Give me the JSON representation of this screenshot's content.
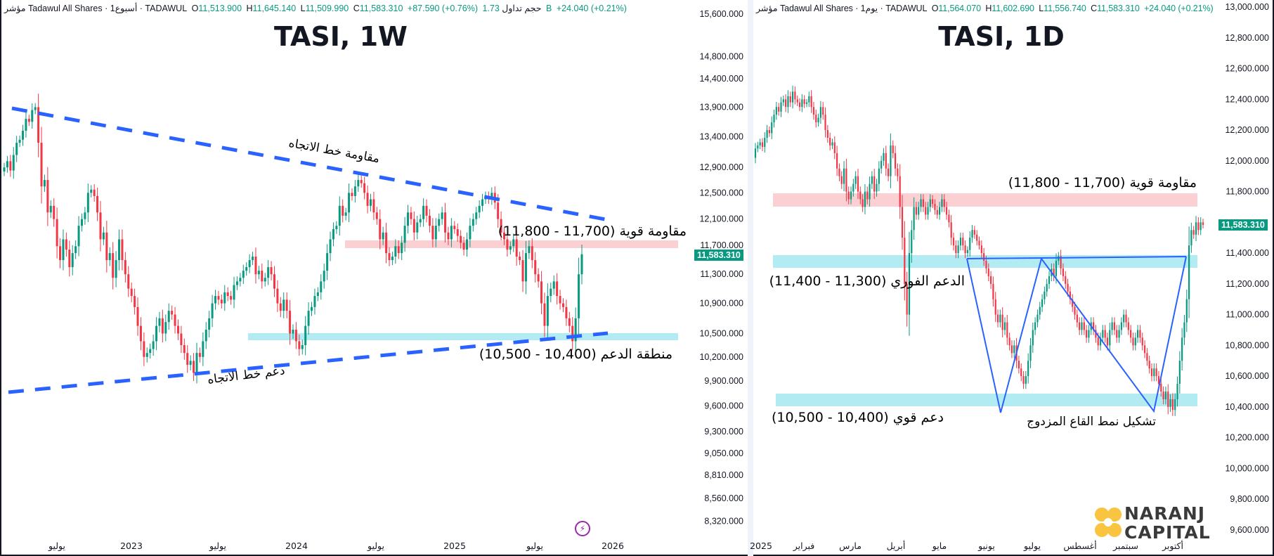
{
  "colors": {
    "up": "#089981",
    "down": "#f23645",
    "trendline": "#2962ff",
    "resistance_zone": "#fbd0d3",
    "support_zone": "#b2ebf2",
    "price_tag": "#089981"
  },
  "left": {
    "header": {
      "symbol": "مؤشر Tadawul All Shares · 1أسبوع · TADAWUL",
      "ohlc": [
        {
          "k": "O",
          "v": "11,513.900"
        },
        {
          "k": "H",
          "v": "11,645.140"
        },
        {
          "k": "L",
          "v": "11,509.990"
        },
        {
          "k": "C",
          "v": "11,583.310"
        }
      ],
      "change": "+87.590 (+0.76%)",
      "volume_label": "حجم تداول",
      "volume": "1.73 B",
      "extra_change": "+24.040 (+0.21%)"
    },
    "title": "TASI, 1W",
    "price_tag": "11,583.310",
    "annotations": {
      "trend_resistance": "مقاومة خط الاتجاه",
      "trend_support": "دعم خط الاتجاه",
      "strong_resistance": "مقاومة قوية (11,700 - 11,800)",
      "support_zone": "منطقة الدعم (10,400 - 10,500)"
    },
    "bolt_icon": "lightning-icon"
  },
  "right": {
    "header": {
      "symbol": "مؤشر Tadawul All Shares · 1يوم · TADAWUL",
      "ohlc": [
        {
          "k": "O",
          "v": "11,564.070"
        },
        {
          "k": "H",
          "v": "11,602.690"
        },
        {
          "k": "L",
          "v": "11,556.740"
        },
        {
          "k": "C",
          "v": "11,583.310"
        }
      ],
      "change": "+24.040 (+0.21%)"
    },
    "title": "TASI, 1D",
    "price_tag": "11,583.310",
    "annotations": {
      "strong_resistance": "مقاومة قوية (11,700 - 11,800)",
      "immediate_support": "الدعم الفوري (11,300 - 11,400)",
      "strong_support": "دعم قوي (10,400 - 10,500)",
      "double_bottom": "تشكيل نمط القاع المزدوج"
    }
  },
  "logo": {
    "line1": "NARANJ",
    "line2": "CAPITAL"
  },
  "chart_data": [
    {
      "type": "candlestick",
      "title": "TASI, 1W",
      "y_scale": "log",
      "ylim": [
        8320,
        15600
      ],
      "y_ticks": [
        "15,600.000",
        "14,800.000",
        "14,400.000",
        "13,900.000",
        "13,400.000",
        "12,900.000",
        "12,500.000",
        "12,100.000",
        "11,700.000",
        "11,300.000",
        "10,900.000",
        "10,500.000",
        "10,200.000",
        "9,900.000",
        "9,600.000",
        "9,300.000",
        "9,050.000",
        "8,810.000",
        "8,560.000",
        "8,320.000"
      ],
      "x_ticks": [
        "يوليو",
        "2023",
        "يوليو",
        "2024",
        "يوليو",
        "2025",
        "يوليو",
        "2026"
      ],
      "last_price": 11583.31,
      "zones": [
        {
          "name": "resistance",
          "from": 11700,
          "to": 11800
        },
        {
          "name": "support",
          "from": 10400,
          "to": 10500
        }
      ],
      "weekly_closes": [
        12900,
        13000,
        12850,
        13100,
        13300,
        13350,
        13500,
        13700,
        13650,
        13850,
        13900,
        13300,
        12600,
        12700,
        12200,
        12300,
        12100,
        11700,
        11500,
        11800,
        11650,
        11400,
        11600,
        11700,
        12000,
        12100,
        12200,
        12500,
        12550,
        12450,
        12200,
        11800,
        11900,
        11500,
        11600,
        11250,
        11500,
        11800,
        11500,
        11300,
        11100,
        11000,
        10850,
        10600,
        10400,
        10200,
        10250,
        10300,
        10400,
        10600,
        10700,
        10500,
        10650,
        10800,
        10750,
        10600,
        10500,
        10350,
        10250,
        10100,
        10150,
        10000,
        10250,
        10200,
        10400,
        10550,
        10700,
        10900,
        11000,
        10950,
        10900,
        11050,
        11000,
        10950,
        11150,
        11200,
        11250,
        11350,
        11400,
        11500,
        11550,
        11300,
        11350,
        11200,
        11250,
        11400,
        11300,
        11100,
        10900,
        10800,
        10950,
        10800,
        10500,
        10550,
        10400,
        10300,
        10350,
        10600,
        10800,
        10850,
        11000,
        11050,
        11200,
        11350,
        11600,
        11800,
        11950,
        12000,
        12300,
        12150,
        12200,
        12500,
        12450,
        12600,
        12700,
        12650,
        12500,
        12300,
        12400,
        12200,
        12100,
        11800,
        11900,
        11600,
        11500,
        11550,
        11700,
        11600,
        11750,
        12000,
        12200,
        12100,
        11900,
        12050,
        12100,
        12300,
        12150,
        12000,
        11800,
        12000,
        12100,
        12200,
        11900,
        11800,
        12000,
        11950,
        11850,
        11750,
        11650,
        11800,
        12000,
        12100,
        12200,
        12300,
        12400,
        12450,
        12400,
        12500,
        12350,
        12100,
        11900,
        11800,
        11650,
        11700,
        11800,
        11550,
        11500,
        11200,
        11600,
        11700,
        11500,
        11300,
        11200,
        10900,
        10600,
        11000,
        11100,
        11200,
        11000,
        10900,
        10850,
        10700,
        10600,
        10400,
        10700,
        11300,
        11583.31
      ]
    },
    {
      "type": "candlestick",
      "title": "TASI, 1D",
      "y_scale": "linear",
      "ylim": [
        9600,
        13000
      ],
      "y_ticks": [
        "13,000.000",
        "12,800.000",
        "12,600.000",
        "12,400.000",
        "12,200.000",
        "12,000.000",
        "11,800.000",
        "11,400.000",
        "11,200.000",
        "11,000.000",
        "10,800.000",
        "10,600.000",
        "10,400.000",
        "10,200.000",
        "10,000.000",
        "9,800.000",
        "9,600.000"
      ],
      "x_ticks": [
        "2025",
        "فبراير",
        "مارس",
        "أبريل",
        "مايو",
        "يونيو",
        "يوليو",
        "أغسطس",
        "سبتمبر",
        "أكتوبر"
      ],
      "last_price": 11583.31,
      "zones": [
        {
          "name": "resistance",
          "from": 11700,
          "to": 11800
        },
        {
          "name": "immediate_support",
          "from": 11300,
          "to": 11400
        },
        {
          "name": "strong_support",
          "from": 10400,
          "to": 10500
        }
      ],
      "daily_closes": [
        12080,
        12100,
        12120,
        12090,
        12150,
        12200,
        12180,
        12250,
        12300,
        12350,
        12320,
        12380,
        12400,
        12350,
        12420,
        12380,
        12450,
        12400,
        12380,
        12350,
        12400,
        12370,
        12380,
        12420,
        12350,
        12300,
        12250,
        12280,
        12350,
        12300,
        12200,
        12150,
        12100,
        12120,
        12050,
        11950,
        11900,
        11850,
        11950,
        11800,
        11750,
        11800,
        11850,
        11900,
        11800,
        11750,
        11700,
        11800,
        11750,
        11850,
        11900,
        11800,
        11850,
        11950,
        12000,
        12050,
        11950,
        11900,
        12100,
        12050,
        11950,
        11900,
        11700,
        11500,
        11200,
        11000,
        11400,
        11550,
        11700,
        11650,
        11700,
        11750,
        11700,
        11650,
        11700,
        11750,
        11720,
        11680,
        11650,
        11700,
        11750,
        11700,
        11650,
        11600,
        11500,
        11450,
        11400,
        11450,
        11500,
        11450,
        11400,
        11420,
        11500,
        11550,
        11520,
        11480,
        11450,
        11400,
        11350,
        11300,
        11250,
        11200,
        11100,
        11000,
        10950,
        11000,
        10900,
        10950,
        10850,
        10800,
        10750,
        10800,
        10700,
        10650,
        10600,
        10550,
        10600,
        10700,
        10800,
        10900,
        10950,
        11000,
        11050,
        11100,
        11150,
        11200,
        11250,
        11300,
        11250,
        11350,
        11380,
        11300,
        11250,
        11200,
        11150,
        11100,
        11050,
        11000,
        10950,
        10900,
        10950,
        10900,
        10850,
        10900,
        10950,
        10900,
        10850,
        10800,
        10850,
        10900,
        10850,
        10800,
        10900,
        10950,
        10900,
        10850,
        10900,
        10950,
        11000,
        10950,
        10900,
        10850,
        10800,
        10850,
        10900,
        10850,
        10800,
        10750,
        10700,
        10650,
        10600,
        10650,
        10600,
        10550,
        10500,
        10450,
        10500,
        10400,
        10450,
        10380,
        10450,
        10550,
        10700,
        10850,
        10950,
        11100,
        11450,
        11550,
        11520,
        11600,
        11550,
        11600,
        11583.31
      ]
    }
  ]
}
